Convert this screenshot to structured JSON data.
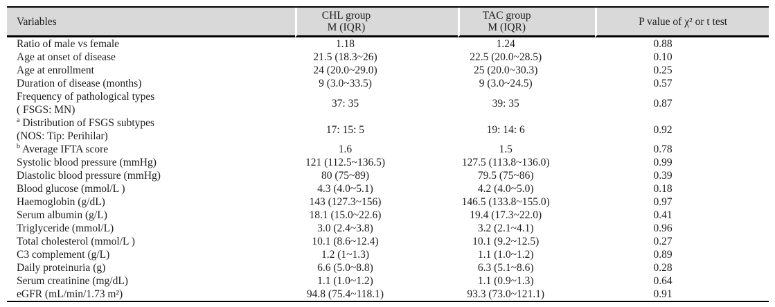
{
  "table": {
    "header_bg": "#d9d9d9",
    "rule_color": "#000000",
    "text_color": "#1c1c1c",
    "columns": [
      {
        "key": "variable",
        "label": "Variables"
      },
      {
        "key": "chl",
        "label": "CHL group\nM (IQR)"
      },
      {
        "key": "tac",
        "label": "TAC group\nM (IQR)"
      },
      {
        "key": "p",
        "label": "P value of χ² or t test"
      }
    ],
    "rows": [
      {
        "variable": "Ratio of male vs female",
        "chl": "1.18",
        "tac": "1.24",
        "p": "0.88"
      },
      {
        "variable": "Age at onset of disease",
        "chl": "21.5 (18.3~26)",
        "tac": "22.5 (20.0~28.5)",
        "p": "0.10"
      },
      {
        "variable": "Age at enrollment",
        "chl": "24 (20.0~29.0)",
        "tac": "25 (20.0~30.3)",
        "p": "0.25"
      },
      {
        "variable": "Duration of disease (months)",
        "chl": "9 (3.0~33.5)",
        "tac": "9 (3.0~24.5)",
        "p": "0.57"
      },
      {
        "variable": "Frequency of pathological types\n( FSGS: MN)",
        "chl": "37: 35",
        "tac": "39: 35",
        "p": "0.87"
      },
      {
        "sup": "a",
        "variable": "Distribution of FSGS subtypes\n(NOS: Tip: Perihilar)",
        "chl": "17: 15: 5",
        "tac": "19: 14: 6",
        "p": "0.92"
      },
      {
        "sup": "b",
        "variable": "Average IFTA score",
        "chl": "1.6",
        "tac": "1.5",
        "p": "0.78"
      },
      {
        "variable": "Systolic blood pressure (mmHg)",
        "chl": "121 (112.5~136.5)",
        "tac": "127.5 (113.8~136.0)",
        "p": "0.99"
      },
      {
        "variable": "Diastolic blood pressure (mmHg)",
        "chl": "80 (75~89)",
        "tac": "79.5 (75~86)",
        "p": "0.39"
      },
      {
        "variable": "Blood glucose (mmol/L )",
        "chl": "4.3 (4.0~5.1)",
        "tac": "4.2 (4.0~5.0)",
        "p": "0.18"
      },
      {
        "variable": "Haemoglobin (g/dL)",
        "chl": "143 (127.3~156)",
        "tac": "146.5 (133.8~155.0)",
        "p": "0.97"
      },
      {
        "variable": "Serum albumin (g/L)",
        "chl": "18.1 (15.0~22.6)",
        "tac": "19.4 (17.3~22.0)",
        "p": "0.41"
      },
      {
        "variable": "Triglyceride (mmol/L)",
        "chl": "3.0 (2.4~3.8)",
        "tac": "3.2 (2.1~4.1)",
        "p": "0.96"
      },
      {
        "variable": "Total cholesterol (mmol/L )",
        "chl": "10.1 (8.6~12.4)",
        "tac": "10.1 (9.2~12.5)",
        "p": "0.27"
      },
      {
        "variable": "C3 complement (g/L)",
        "chl": "1.2 (1~1.3)",
        "tac": "1.1 (1.0~1.2)",
        "p": "0.89"
      },
      {
        "variable": "Daily proteinuria (g)",
        "chl": "6.6 (5.0~8.8)",
        "tac": "6.3 (5.1~8.6)",
        "p": "0.28"
      },
      {
        "variable": "Serum creatinine (mg/dL)",
        "chl": "1.1 (1.0~1.2)",
        "tac": "1.1 (0.9~1.3)",
        "p": "0.64"
      },
      {
        "variable": "eGFR (mL/min/1.73 m²)",
        "chl": "94.8 (75.4~118.1)",
        "tac": "93.3 (73.0~121.1)",
        "p": "0.91"
      }
    ]
  }
}
